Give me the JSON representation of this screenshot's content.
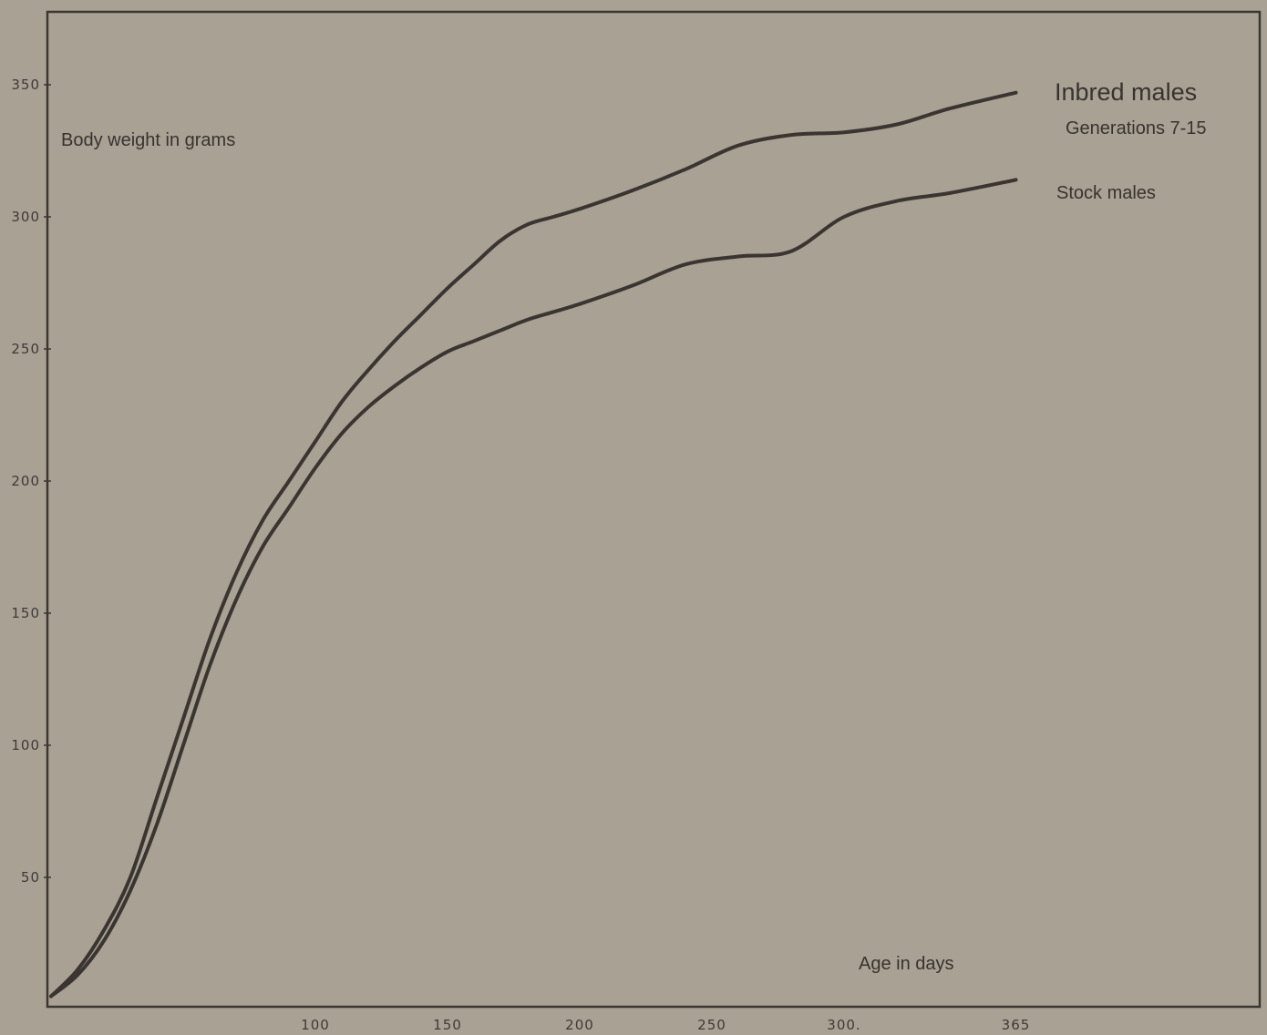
{
  "chart_data": {
    "type": "line",
    "title": "",
    "xlabel": "Age in days",
    "ylabel": "Body weight in grams",
    "xlim": [
      0,
      365
    ],
    "ylim": [
      0,
      370
    ],
    "x_ticks": [
      "100",
      "150",
      "200",
      "250",
      "300.",
      "365"
    ],
    "y_ticks": [
      "50",
      "100",
      "150",
      "200",
      "250",
      "300",
      "350"
    ],
    "grid": false,
    "series": [
      {
        "name": "Inbred males",
        "sublabel": "Generations 7-15",
        "x": [
          0,
          10,
          20,
          30,
          40,
          50,
          60,
          70,
          80,
          90,
          100,
          110,
          120,
          130,
          140,
          150,
          160,
          170,
          180,
          190,
          200,
          220,
          240,
          260,
          280,
          300,
          320,
          340,
          365
        ],
        "y": [
          5,
          15,
          30,
          50,
          80,
          110,
          140,
          165,
          185,
          200,
          215,
          230,
          242,
          253,
          263,
          273,
          282,
          291,
          297,
          300,
          303,
          310,
          318,
          327,
          331,
          332,
          335,
          341,
          347
        ]
      },
      {
        "name": "Stock males",
        "x": [
          0,
          10,
          20,
          30,
          40,
          50,
          60,
          70,
          80,
          90,
          100,
          110,
          120,
          130,
          140,
          150,
          160,
          170,
          180,
          190,
          200,
          220,
          240,
          260,
          280,
          300,
          320,
          340,
          365
        ],
        "y": [
          5,
          13,
          26,
          45,
          70,
          100,
          130,
          155,
          175,
          190,
          205,
          218,
          228,
          236,
          243,
          249,
          253,
          257,
          261,
          264,
          267,
          274,
          282,
          285,
          287,
          300,
          306,
          309,
          314
        ]
      }
    ]
  }
}
